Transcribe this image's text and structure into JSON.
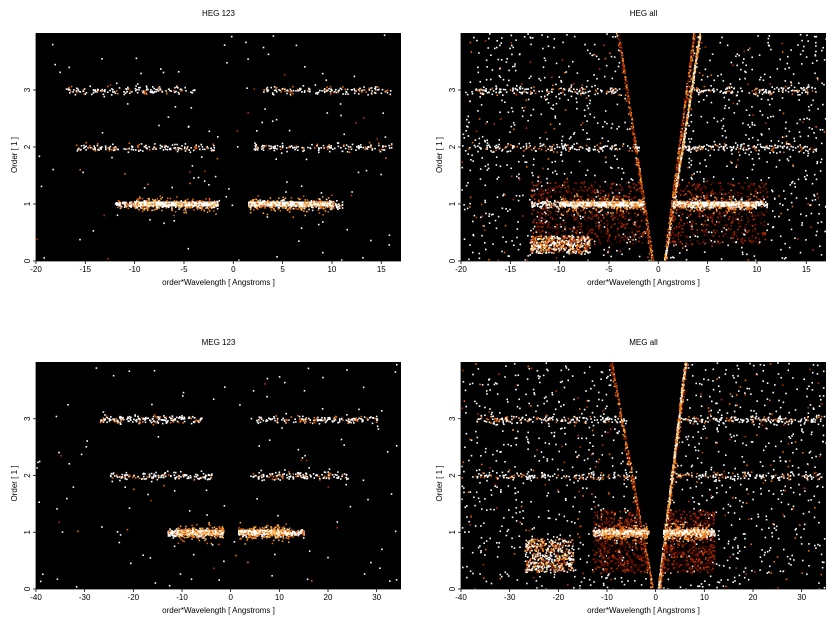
{
  "colors": {
    "background": "#000000",
    "axis": "#000000",
    "palette": [
      "#3a0600",
      "#7a1400",
      "#b83000",
      "#e86a10",
      "#ffb040",
      "#ffffff"
    ]
  },
  "chart_data": [
    {
      "type": "heatmap",
      "title": "HEG 123",
      "xlabel": "order*Wavelength [ Angstroms ]",
      "ylabel": "Order [ 1 ]",
      "xlim": [
        -20,
        17
      ],
      "ylim": [
        0,
        4
      ],
      "xticks": [
        -20,
        -15,
        -10,
        -5,
        0,
        5,
        10,
        15
      ],
      "yticks": [
        0,
        1,
        2,
        3
      ],
      "grid": false,
      "bands": [
        {
          "order": 1,
          "x": [
            -12,
            -1.5
          ],
          "core": [
            -10,
            -1.5
          ],
          "intensity": 1.0
        },
        {
          "order": 1,
          "x": [
            1.5,
            11
          ],
          "core": [
            1.5,
            10
          ],
          "intensity": 1.0
        },
        {
          "order": 2,
          "x": [
            -16,
            -2
          ],
          "intensity": 0.35
        },
        {
          "order": 2,
          "x": [
            2,
            16
          ],
          "intensity": 0.35
        },
        {
          "order": 3,
          "x": [
            -17,
            -4
          ],
          "intensity": 0.3
        },
        {
          "order": 3,
          "x": [
            3,
            16
          ],
          "intensity": 0.3
        }
      ],
      "background_density": 0.05,
      "wedge": false
    },
    {
      "type": "heatmap",
      "title": "HEG all",
      "xlabel": "order*Wavelength [ Angstroms ]",
      "ylabel": "Order [ 1 ]",
      "xlim": [
        -20,
        17
      ],
      "ylim": [
        0,
        4
      ],
      "xticks": [
        -20,
        -15,
        -10,
        -5,
        0,
        5,
        10,
        15
      ],
      "yticks": [
        0,
        1,
        2,
        3
      ],
      "grid": false,
      "bands": [
        {
          "order": 1,
          "x": [
            -13,
            -1.5
          ],
          "core": [
            -10,
            -1.5
          ],
          "intensity": 1.0
        },
        {
          "order": 1,
          "x": [
            1.5,
            11
          ],
          "core": [
            1.5,
            10
          ],
          "intensity": 1.0
        },
        {
          "order": 2,
          "x": [
            -19,
            -2
          ],
          "intensity": 0.35
        },
        {
          "order": 2,
          "x": [
            2,
            16
          ],
          "intensity": 0.35
        },
        {
          "order": 3,
          "x": [
            -19,
            -4
          ],
          "intensity": 0.3
        },
        {
          "order": 3,
          "x": [
            3,
            16
          ],
          "intensity": 0.3
        }
      ],
      "background_density": 0.45,
      "wedge": true,
      "wedge_edges": {
        "left_top": -4,
        "left_bottom": -0.5,
        "right_top": 3.5,
        "right_bottom": 0.5
      },
      "hot_streak": {
        "x_top": 4.2,
        "x_bottom": 0.6
      },
      "blob": {
        "x": [
          -13,
          -7
        ],
        "y": [
          0.15,
          0.45
        ]
      }
    },
    {
      "type": "heatmap",
      "title": "MEG 123",
      "xlabel": "order*Wavelength [ Angstroms ]",
      "ylabel": "Order [ 1 ]",
      "xlim": [
        -40,
        35
      ],
      "ylim": [
        0,
        4
      ],
      "xticks": [
        -40,
        -30,
        -20,
        -10,
        0,
        10,
        20,
        30
      ],
      "yticks": [
        0,
        1,
        2,
        3
      ],
      "grid": false,
      "bands": [
        {
          "order": 1,
          "x": [
            -13,
            -1.5
          ],
          "core": [
            -11,
            -1.5
          ],
          "intensity": 1.0
        },
        {
          "order": 1,
          "x": [
            1.5,
            15
          ],
          "core": [
            1.5,
            12
          ],
          "intensity": 1.0
        },
        {
          "order": 2,
          "x": [
            -25,
            -4
          ],
          "intensity": 0.3
        },
        {
          "order": 2,
          "x": [
            4,
            24
          ],
          "intensity": 0.3
        },
        {
          "order": 3,
          "x": [
            -27,
            -6
          ],
          "intensity": 0.45
        },
        {
          "order": 3,
          "x": [
            5,
            30
          ],
          "intensity": 0.4
        }
      ],
      "background_density": 0.05,
      "wedge": false
    },
    {
      "type": "heatmap",
      "title": "MEG all",
      "xlabel": "order*Wavelength [ Angstroms ]",
      "ylabel": "Order [ 1 ]",
      "xlim": [
        -40,
        35
      ],
      "ylim": [
        0,
        4
      ],
      "xticks": [
        -40,
        -30,
        -20,
        -10,
        0,
        10,
        20,
        30
      ],
      "yticks": [
        0,
        1,
        2,
        3
      ],
      "grid": false,
      "bands": [
        {
          "order": 1,
          "x": [
            -13,
            -1.5
          ],
          "core": [
            -11,
            -1.5
          ],
          "intensity": 1.0
        },
        {
          "order": 1,
          "x": [
            1.5,
            12
          ],
          "core": [
            1.5,
            11
          ],
          "intensity": 1.0
        },
        {
          "order": 2,
          "x": [
            -37,
            -4
          ],
          "intensity": 0.3
        },
        {
          "order": 2,
          "x": [
            4,
            34
          ],
          "intensity": 0.3
        },
        {
          "order": 3,
          "x": [
            -37,
            -6
          ],
          "intensity": 0.45
        },
        {
          "order": 3,
          "x": [
            5,
            34
          ],
          "intensity": 0.4
        }
      ],
      "background_density": 0.5,
      "wedge": true,
      "wedge_edges": {
        "left_top": -9,
        "left_bottom": -0.5,
        "right_top": 6,
        "right_bottom": 0.5
      },
      "hot_streak": {
        "x_top": 6,
        "x_bottom": 0.5
      },
      "blob": {
        "x": [
          -27,
          -17
        ],
        "y": [
          0.3,
          0.9
        ]
      }
    }
  ]
}
